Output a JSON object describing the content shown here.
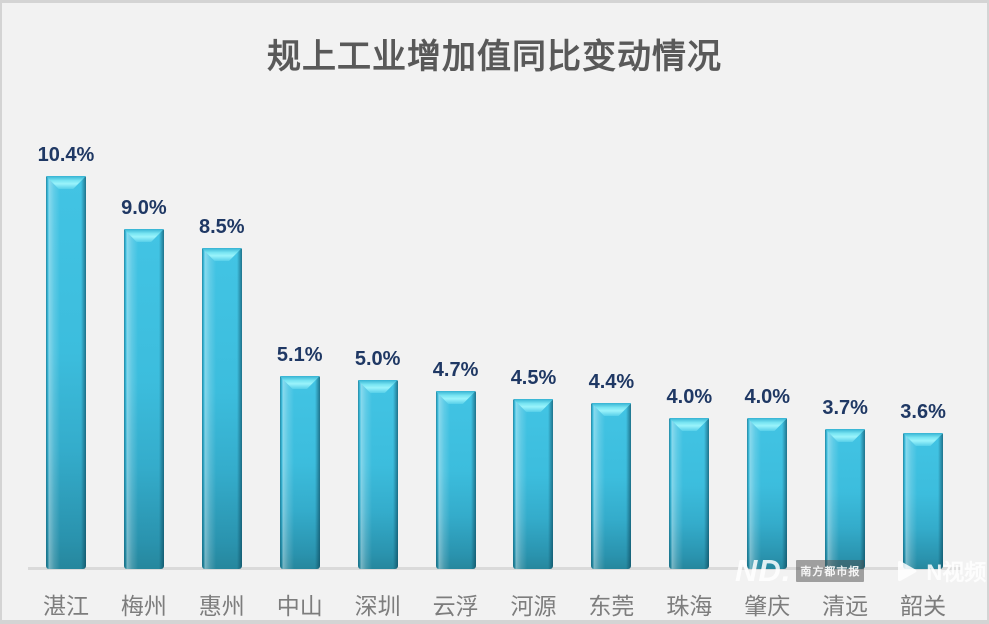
{
  "title": "规上工业增加值同比变动情况",
  "chart_data": {
    "type": "bar",
    "title": "规上工业增加值同比变动情况",
    "categories": [
      "湛江",
      "梅州",
      "惠州",
      "中山",
      "深圳",
      "云浮",
      "河源",
      "东莞",
      "珠海",
      "肇庆",
      "清远",
      "韶关"
    ],
    "values": [
      10.4,
      9.0,
      8.5,
      5.1,
      5.0,
      4.7,
      4.5,
      4.4,
      4.0,
      4.0,
      3.7,
      3.6
    ],
    "value_labels": [
      "10.4%",
      "9.0%",
      "8.5%",
      "5.1%",
      "5.0%",
      "4.7%",
      "4.5%",
      "4.4%",
      "4.0%",
      "4.0%",
      "3.7%",
      "3.6%"
    ],
    "xlabel": "",
    "ylabel": "",
    "ylim": [
      0,
      11
    ],
    "grid": false,
    "legend": false,
    "unit": "%",
    "bar_color": "#38b8d9",
    "value_label_color": "#1f3864"
  },
  "watermark": {
    "nd_logo": "ND.",
    "paper_name": "南方都市报",
    "video_brand": "N视频"
  },
  "colors": {
    "background": "#f2f2f2",
    "title_text": "#595959",
    "axis_line": "#dadada",
    "category_label": "#7d7d7d"
  }
}
